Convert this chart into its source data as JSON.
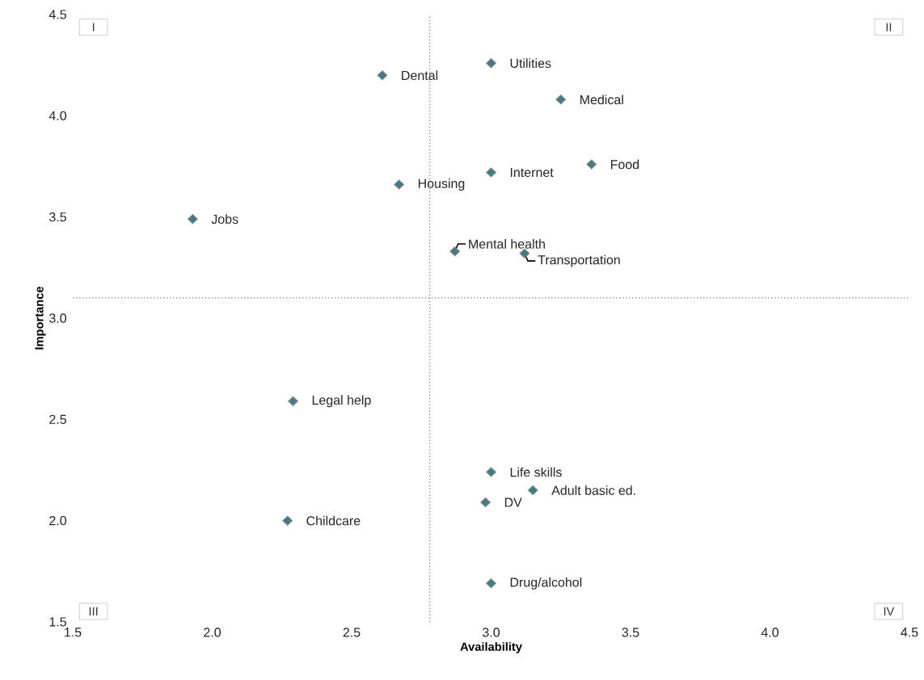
{
  "chart_data": {
    "type": "scatter",
    "xlabel": "Availability",
    "ylabel": "Importance",
    "xlim": [
      1.5,
      4.5
    ],
    "ylim": [
      1.5,
      4.5
    ],
    "xticks": [
      {
        "value": 1.5,
        "label": "1.5"
      },
      {
        "value": 2,
        "label": "2.0"
      },
      {
        "value": 2.5,
        "label": "2.5"
      },
      {
        "value": 3,
        "label": "3.0"
      },
      {
        "value": 3.5,
        "label": "3.5"
      },
      {
        "value": 4,
        "label": "4.0"
      },
      {
        "value": 4.5,
        "label": "4.5"
      }
    ],
    "yticks": [
      {
        "value": 1.5,
        "label": "1.5"
      },
      {
        "value": 2,
        "label": "2.0"
      },
      {
        "value": 2.5,
        "label": "2.5"
      },
      {
        "value": 3,
        "label": "3.0"
      },
      {
        "value": 3.5,
        "label": "3.5"
      },
      {
        "value": 4,
        "label": "4.0"
      },
      {
        "value": 4.5,
        "label": "4.5"
      }
    ],
    "marker": "diamond",
    "grid": false,
    "series": [
      {
        "color": "#3a7d8c",
        "x": [
          1.93,
          2.61,
          2.67,
          3.0,
          3.25,
          3.0,
          3.36,
          2.87,
          3.12,
          2.29,
          2.27,
          3.0,
          3.15,
          2.98,
          3.0
        ],
        "values": [
          3.49,
          4.2,
          3.66,
          4.26,
          4.08,
          3.72,
          3.76,
          3.33,
          3.32,
          2.59,
          2.0,
          2.24,
          2.15,
          2.09,
          1.69
        ]
      }
    ],
    "ref_lines": [
      {
        "axis": "x",
        "value": 2.78,
        "line_style": "dotted",
        "color": "#808080"
      },
      {
        "axis": "y",
        "value": 3.1,
        "line_style": "dotted",
        "color": "#808080"
      }
    ],
    "annotations": [
      {
        "text": "Jobs",
        "x": 1.93,
        "y": 3.49
      },
      {
        "text": "Dental",
        "x": 2.61,
        "y": 4.2
      },
      {
        "text": "Housing",
        "x": 2.67,
        "y": 3.66
      },
      {
        "text": "Utilities",
        "x": 3.0,
        "y": 4.26
      },
      {
        "text": "Medical",
        "x": 3.25,
        "y": 4.08
      },
      {
        "text": "Internet",
        "x": 3.0,
        "y": 3.72
      },
      {
        "text": "Food",
        "x": 3.36,
        "y": 3.76
      },
      {
        "text": "Mental health",
        "x": 2.87,
        "y": 3.33
      },
      {
        "text": "Transportation",
        "x": 3.12,
        "y": 3.32
      },
      {
        "text": "Legal help",
        "x": 2.29,
        "y": 2.59
      },
      {
        "text": "Childcare",
        "x": 2.27,
        "y": 2.0
      },
      {
        "text": "Life skills",
        "x": 3.0,
        "y": 2.24
      },
      {
        "text": "Adult basic ed.",
        "x": 3.15,
        "y": 2.15
      },
      {
        "text": "DV",
        "x": 2.98,
        "y": 2.09
      },
      {
        "text": "Drug/alcohol",
        "x": 3.0,
        "y": 1.69
      },
      "I",
      "II",
      "III",
      "IV"
    ]
  }
}
